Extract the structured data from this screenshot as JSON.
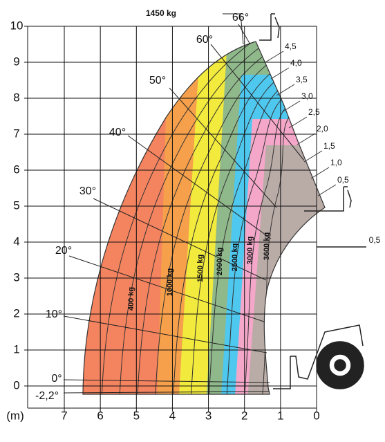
{
  "x_axis": {
    "unit": "(m)",
    "ticks": [
      7,
      6,
      5,
      4,
      3,
      2,
      1,
      0
    ]
  },
  "y_axis": {
    "ticks": [
      0,
      1,
      2,
      3,
      4,
      5,
      6,
      7,
      8,
      9,
      10
    ]
  },
  "top_load": "1450 kg",
  "fork_offset": "0,5",
  "angles": [
    "66°",
    "60°",
    "50°",
    "40°",
    "30°",
    "20°",
    "10°",
    "0°",
    "-2,2°"
  ],
  "extensions": [
    "4,5",
    "4,0",
    "3,5",
    "3,0",
    "2,5",
    "2,0",
    "1,5",
    "1,0",
    "0,5"
  ],
  "loads": [
    "400 kg",
    "1000 kg",
    "1500 kg",
    "2000 kg",
    "2500 kg",
    "3000 kg",
    "3600 kg"
  ]
}
